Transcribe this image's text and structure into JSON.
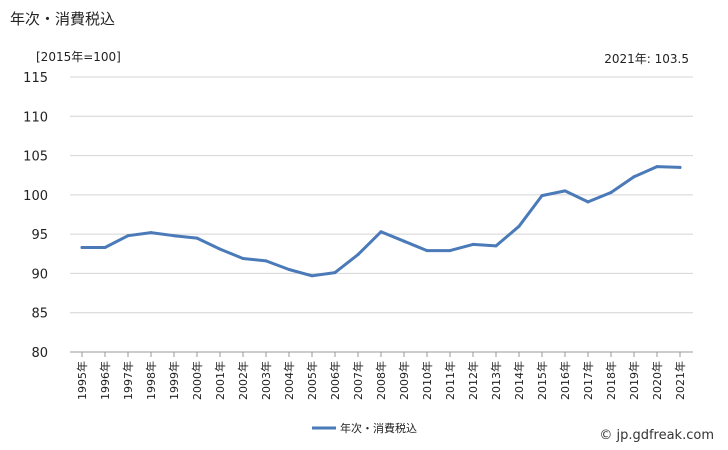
{
  "header": {
    "title": "年次・消費税込",
    "unit": "[2015年=100]",
    "last_value": "2021年: 103.5"
  },
  "watermark": "© jp.gdfreak.com",
  "chart_data": {
    "type": "line",
    "title": "年次・消費税込",
    "xlabel": "",
    "ylabel": "",
    "categories": [
      "1995年",
      "1996年",
      "1997年",
      "1998年",
      "1999年",
      "2000年",
      "2001年",
      "2002年",
      "2003年",
      "2004年",
      "2005年",
      "2006年",
      "2007年",
      "2008年",
      "2009年",
      "2010年",
      "2011年",
      "2012年",
      "2013年",
      "2014年",
      "2015年",
      "2016年",
      "2017年",
      "2018年",
      "2019年",
      "2020年",
      "2021年"
    ],
    "series": [
      {
        "name": "年次・消費税込",
        "color": "#4a7ab8",
        "values": [
          93.3,
          93.3,
          94.8,
          95.2,
          94.8,
          94.5,
          93.1,
          91.9,
          91.6,
          90.5,
          89.7,
          90.1,
          92.4,
          95.3,
          94.1,
          92.9,
          92.9,
          93.7,
          93.5,
          96.0,
          99.9,
          100.5,
          99.1,
          100.3,
          102.3,
          103.6,
          103.5
        ]
      }
    ],
    "ylim": [
      80,
      115
    ],
    "yticks": [
      80,
      85,
      90,
      95,
      100,
      105,
      110,
      115
    ],
    "grid": true,
    "legend": "bottom-center"
  }
}
